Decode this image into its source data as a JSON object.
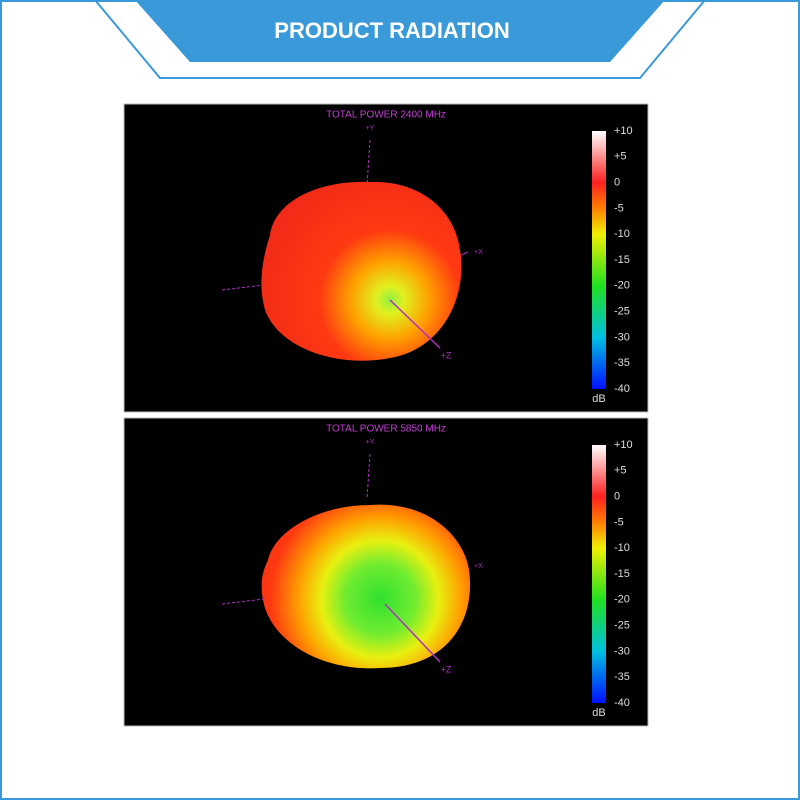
{
  "header": {
    "title": "PRODUCT RADIATION"
  },
  "panels": [
    {
      "title": "TOTAL POWER 2400 MHz",
      "axes": {
        "y": "+Y",
        "x": "+X",
        "z": "+Z"
      },
      "colorbar": {
        "ticks": [
          "+10",
          "+5",
          "0",
          "-5",
          "-10",
          "-15",
          "-20",
          "-25",
          "-30",
          "-35",
          "-40"
        ],
        "unit": "dB"
      }
    },
    {
      "title": "TOTAL POWER 5850 MHz",
      "axes": {
        "y": "+Y",
        "x": "+X",
        "z": "+Z"
      },
      "colorbar": {
        "ticks": [
          "+10",
          "+5",
          "0",
          "-5",
          "-10",
          "-15",
          "-20",
          "-25",
          "-30",
          "-35",
          "-40"
        ],
        "unit": "dB"
      }
    }
  ]
}
